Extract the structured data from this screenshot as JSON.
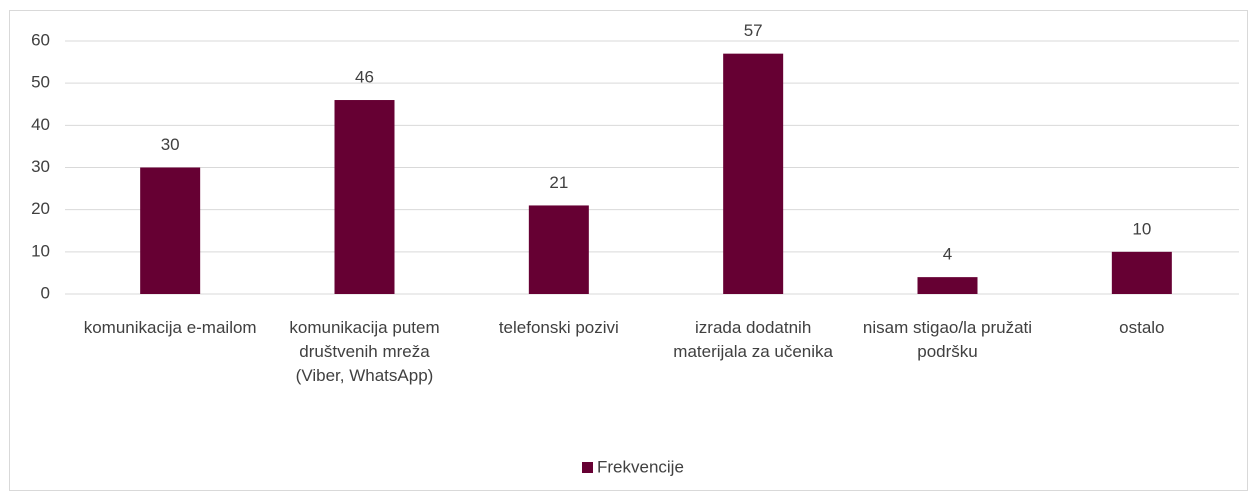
{
  "chart_data": {
    "type": "bar",
    "categories": [
      "komunikacija e-mailom",
      "komunikacija putem društvenih mreža (Viber, WhatsApp)",
      "telefonski pozivi",
      "izrada dodatnih materijala za učenika",
      "nisam stigao/la pružati podršku",
      "ostalo"
    ],
    "series": [
      {
        "name": "Frekvencije",
        "color": "#660033",
        "values": [
          30,
          46,
          21,
          57,
          4,
          10
        ]
      }
    ],
    "ylim": [
      0,
      60
    ],
    "yticks": [
      0,
      10,
      20,
      30,
      40,
      50,
      60
    ],
    "grid": true,
    "legend": "bottom"
  }
}
